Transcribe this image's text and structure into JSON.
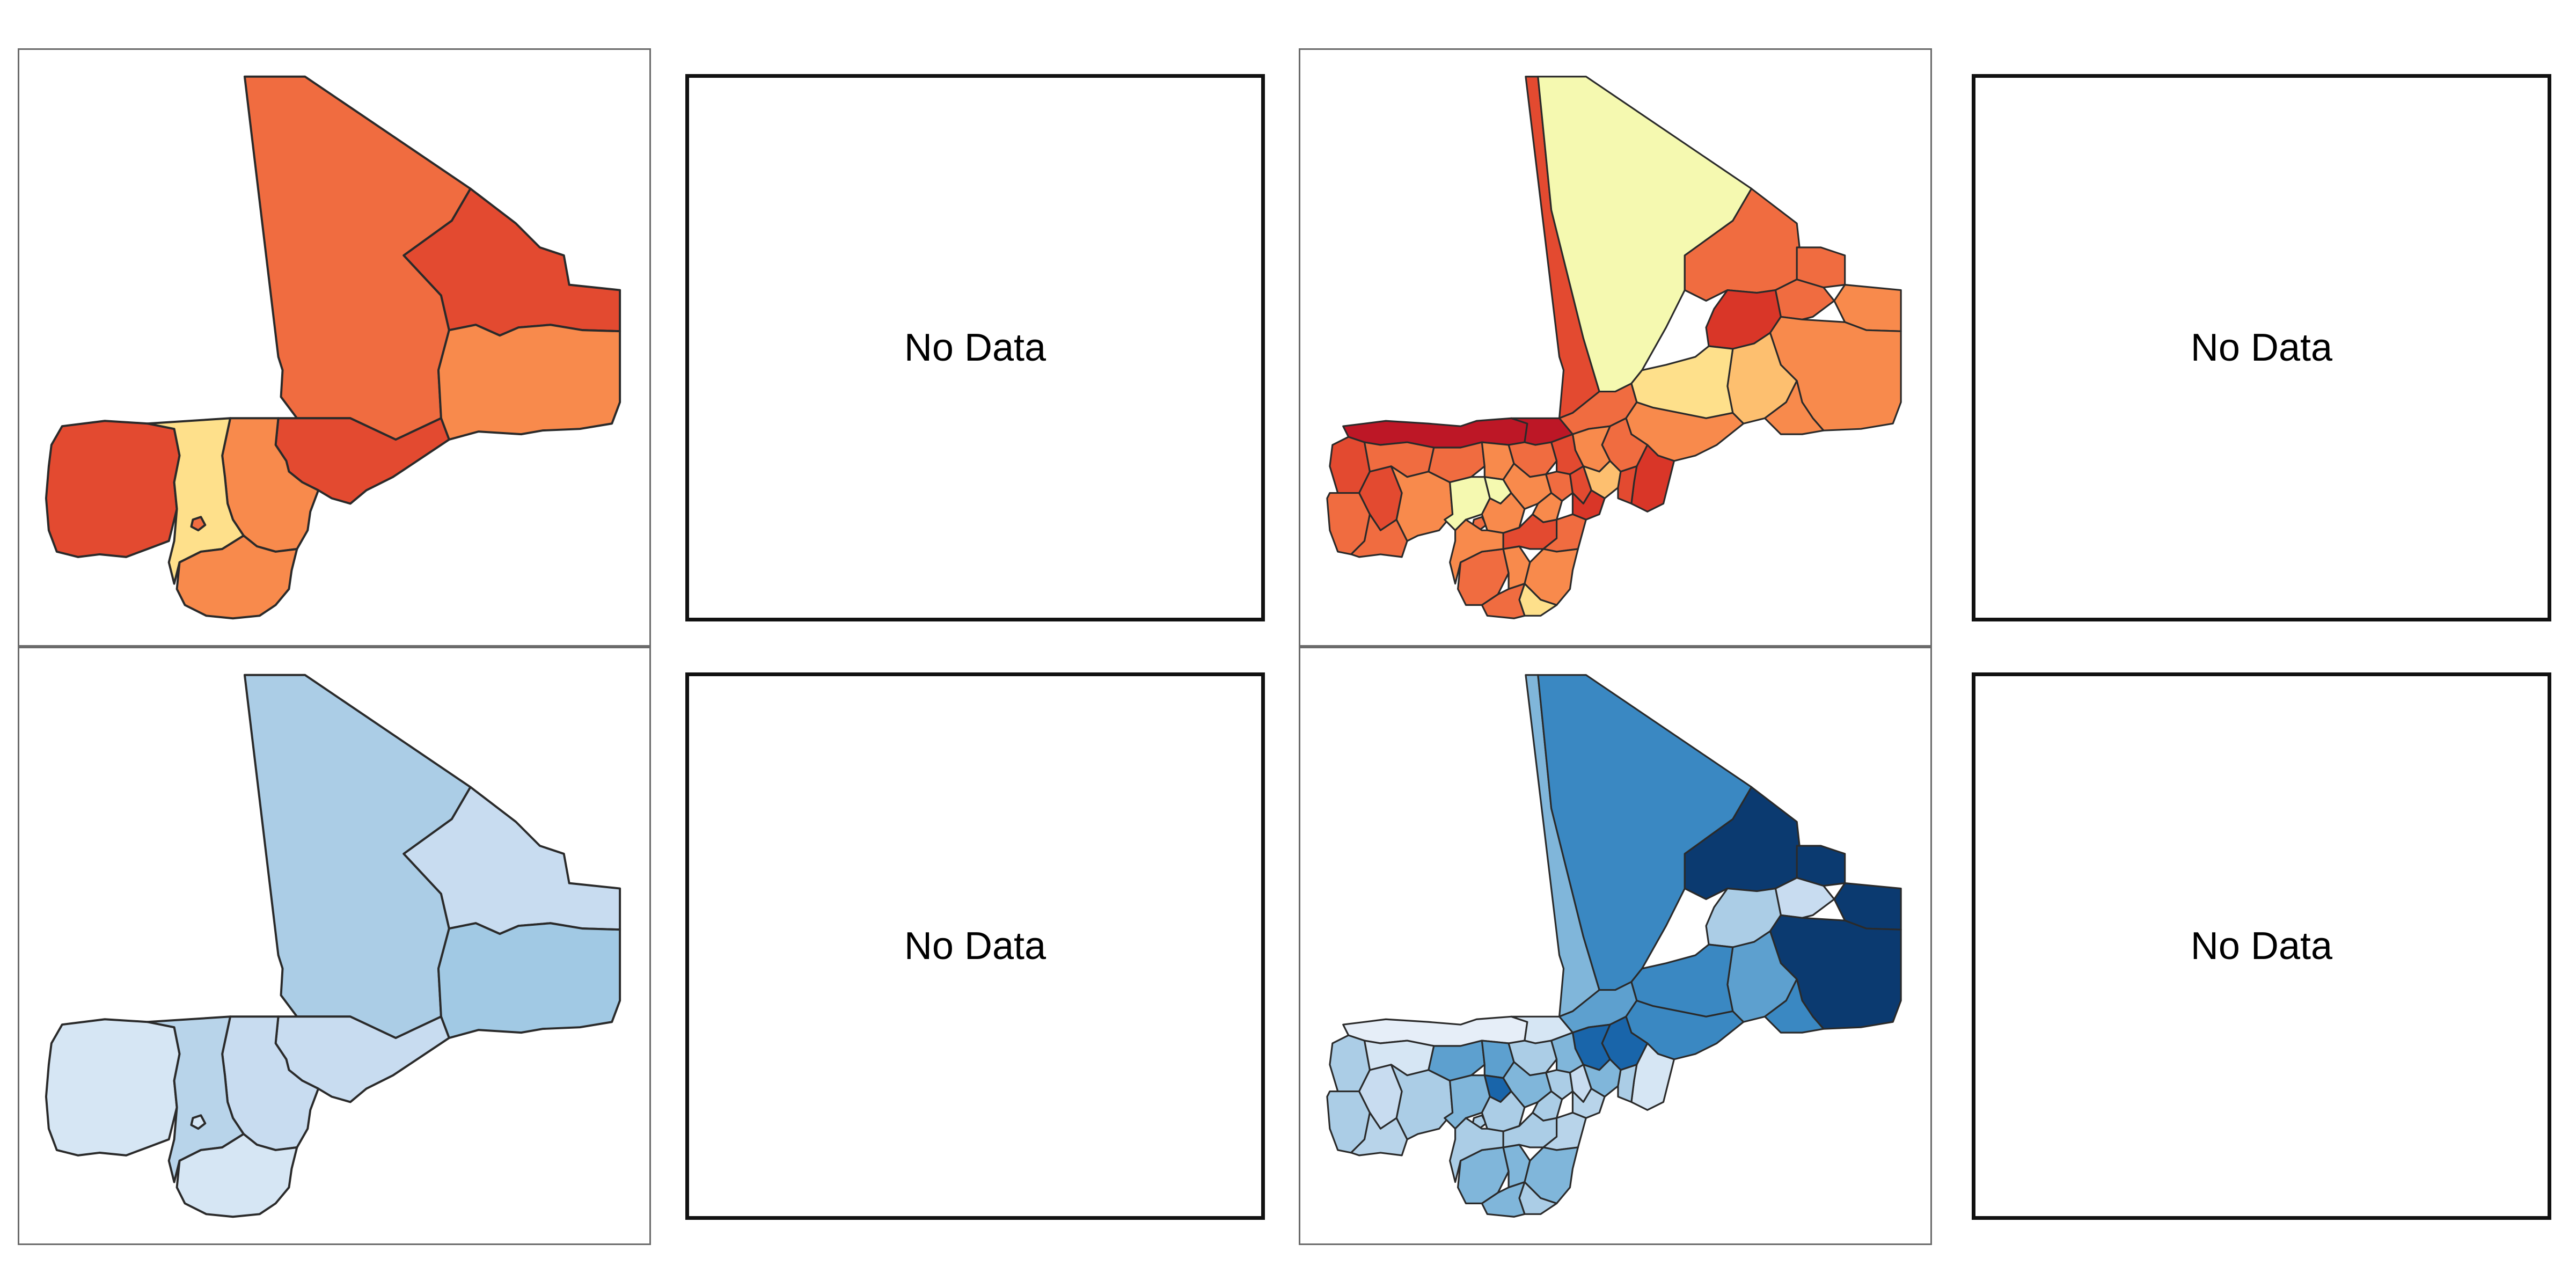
{
  "figure": {
    "panels": [
      {
        "kind": "map",
        "scheme": "YlOrRd",
        "level": "regions"
      },
      {
        "kind": "empty",
        "label": "No Data"
      },
      {
        "kind": "map",
        "scheme": "YlOrRd",
        "level": "cercles"
      },
      {
        "kind": "empty",
        "label": "No Data"
      },
      {
        "kind": "map",
        "scheme": "Blues",
        "level": "regions"
      },
      {
        "kind": "empty",
        "label": "No Data"
      },
      {
        "kind": "map",
        "scheme": "Blues",
        "level": "cercles"
      },
      {
        "kind": "empty",
        "label": "No Data"
      }
    ],
    "colors": {
      "orange_1": "#f06c40",
      "orange_2": "#e34a30",
      "orange_3": "#f88a4c",
      "orange_4": "#fee08b",
      "orange_5": "#f5f9b0",
      "orange_6": "#bd1726",
      "orange_7": "#fdbf6f",
      "orange_8": "#d93628",
      "blue_1": "#abcde6",
      "blue_2": "#c8dcf0",
      "blue_3": "#a1c9e4",
      "blue_4": "#d6e6f4",
      "blue_5": "#b8d4ea",
      "blue_6": "#3a88c2",
      "blue_7": "#0b3a70",
      "blue_8": "#1965aa",
      "blue_9": "#80b6da",
      "blue_10": "#5da0cf",
      "blue_11": "#e6eef8"
    }
  }
}
